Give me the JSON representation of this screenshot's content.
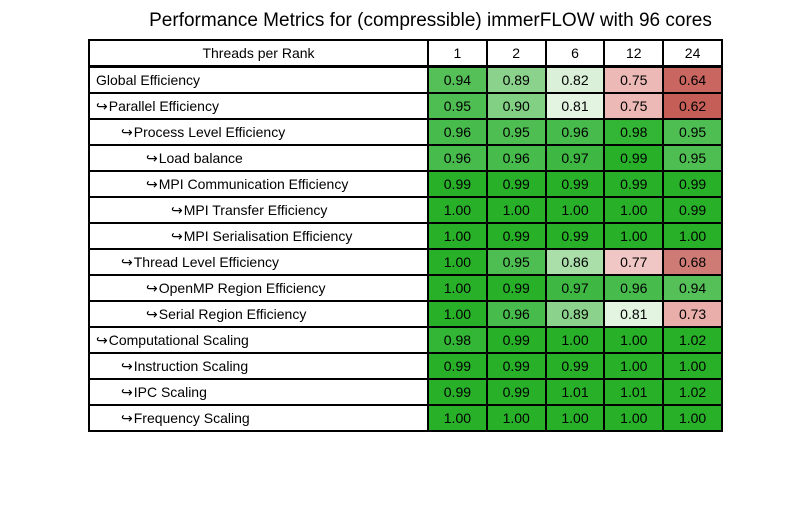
{
  "title": "Performance Metrics for (compressible) immerFLOW with 96 cores",
  "arrow_glyph": "↪",
  "colors": {
    "background": "#ffffff",
    "border": "#000000",
    "text": "#000000",
    "green_max": "#28b128",
    "red_min": "#c45e57"
  },
  "chart_data": {
    "type": "heatmap",
    "title": "Performance Metrics for (compressible) immerFLOW with 96 cores",
    "corner_label": "Threads per Rank",
    "columns": [
      "1",
      "2",
      "6",
      "12",
      "24"
    ],
    "legend_position": "none",
    "grid": true,
    "value_color_scale": "green (high, ~1.00) through white (~0.80) to red (low, ~0.60)",
    "rows": [
      {
        "label": "Global Efficiency",
        "indent": 0,
        "arrow": false,
        "values": [
          "0.94",
          "0.89",
          "0.82",
          "0.75",
          "0.64"
        ],
        "colors": [
          "#55c057",
          "#8bd28c",
          "#daf0d8",
          "#ecb9b6",
          "#c8665f"
        ]
      },
      {
        "label": "Parallel Efficiency",
        "indent": 0,
        "arrow": true,
        "values": [
          "0.95",
          "0.90",
          "0.81",
          "0.75",
          "0.62"
        ],
        "colors": [
          "#4ebe52",
          "#81d083",
          "#e3f4e1",
          "#ecb9b6",
          "#c45e57"
        ]
      },
      {
        "label": "Process Level Efficiency",
        "indent": 1,
        "arrow": true,
        "values": [
          "0.96",
          "0.95",
          "0.96",
          "0.98",
          "0.95"
        ],
        "colors": [
          "#47bb4b",
          "#4ebe52",
          "#47bb4b",
          "#33b535",
          "#4ebe52"
        ]
      },
      {
        "label": "Load balance",
        "indent": 2,
        "arrow": true,
        "values": [
          "0.96",
          "0.96",
          "0.97",
          "0.99",
          "0.95"
        ],
        "colors": [
          "#47bb4b",
          "#47bb4b",
          "#3eb842",
          "#28b128",
          "#4ebe52"
        ]
      },
      {
        "label": "MPI Communication Efficiency",
        "indent": 2,
        "arrow": true,
        "values": [
          "0.99",
          "0.99",
          "0.99",
          "0.99",
          "0.99"
        ],
        "colors": [
          "#28b128",
          "#28b128",
          "#28b128",
          "#28b128",
          "#28b128"
        ]
      },
      {
        "label": "MPI Transfer Efficiency",
        "indent": 3,
        "arrow": true,
        "values": [
          "1.00",
          "1.00",
          "1.00",
          "1.00",
          "0.99"
        ],
        "colors": [
          "#28b128",
          "#28b128",
          "#28b128",
          "#28b128",
          "#28b128"
        ]
      },
      {
        "label": "MPI Serialisation Efficiency",
        "indent": 3,
        "arrow": true,
        "values": [
          "1.00",
          "0.99",
          "0.99",
          "1.00",
          "1.00"
        ],
        "colors": [
          "#28b128",
          "#28b128",
          "#28b128",
          "#28b128",
          "#28b128"
        ]
      },
      {
        "label": "Thread Level Efficiency",
        "indent": 1,
        "arrow": true,
        "values": [
          "1.00",
          "0.95",
          "0.86",
          "0.77",
          "0.68"
        ],
        "colors": [
          "#28b128",
          "#4ebe52",
          "#abdfaa",
          "#f0c7c4",
          "#cf7b75"
        ]
      },
      {
        "label": "OpenMP Region Efficiency",
        "indent": 2,
        "arrow": true,
        "values": [
          "1.00",
          "0.99",
          "0.97",
          "0.96",
          "0.94"
        ],
        "colors": [
          "#28b128",
          "#28b128",
          "#3eb842",
          "#47bb4b",
          "#55c057"
        ]
      },
      {
        "label": "Serial Region Efficiency",
        "indent": 2,
        "arrow": true,
        "values": [
          "1.00",
          "0.96",
          "0.89",
          "0.81",
          "0.73"
        ],
        "colors": [
          "#28b128",
          "#47bb4b",
          "#8bd28c",
          "#e3f4e1",
          "#e9aeaa"
        ]
      },
      {
        "label": "Computational Scaling",
        "indent": 0,
        "arrow": true,
        "values": [
          "0.98",
          "0.99",
          "1.00",
          "1.00",
          "1.02"
        ],
        "colors": [
          "#33b535",
          "#28b128",
          "#28b128",
          "#28b128",
          "#28b128"
        ]
      },
      {
        "label": "Instruction Scaling",
        "indent": 1,
        "arrow": true,
        "values": [
          "0.99",
          "0.99",
          "0.99",
          "1.00",
          "1.00"
        ],
        "colors": [
          "#28b128",
          "#28b128",
          "#28b128",
          "#28b128",
          "#28b128"
        ]
      },
      {
        "label": "IPC Scaling",
        "indent": 1,
        "arrow": true,
        "values": [
          "0.99",
          "0.99",
          "1.01",
          "1.01",
          "1.02"
        ],
        "colors": [
          "#28b128",
          "#28b128",
          "#28b128",
          "#28b128",
          "#28b128"
        ]
      },
      {
        "label": "Frequency Scaling",
        "indent": 1,
        "arrow": true,
        "values": [
          "1.00",
          "1.00",
          "1.00",
          "1.00",
          "1.00"
        ],
        "colors": [
          "#28b128",
          "#28b128",
          "#28b128",
          "#28b128",
          "#28b128"
        ]
      }
    ]
  }
}
